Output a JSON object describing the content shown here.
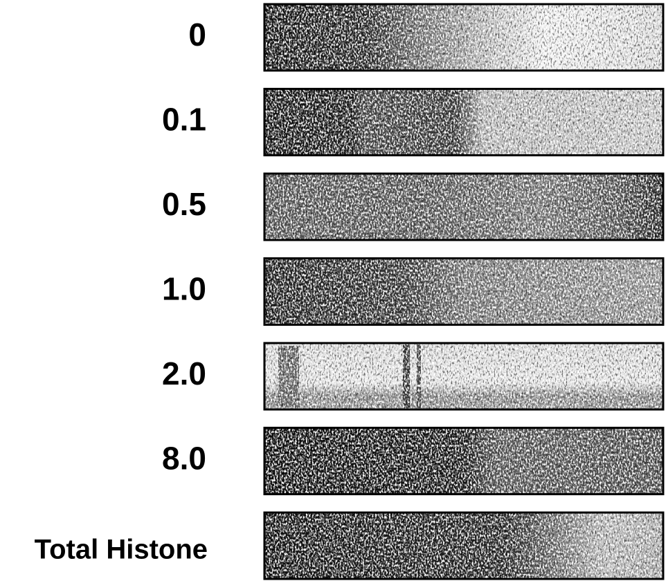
{
  "figure": {
    "lanes": [
      {
        "label": "0"
      },
      {
        "label": "0.1"
      },
      {
        "label": "0.5"
      },
      {
        "label": "1.0"
      },
      {
        "label": "2.0"
      },
      {
        "label": "8.0"
      },
      {
        "label": "Total Histone"
      }
    ]
  }
}
